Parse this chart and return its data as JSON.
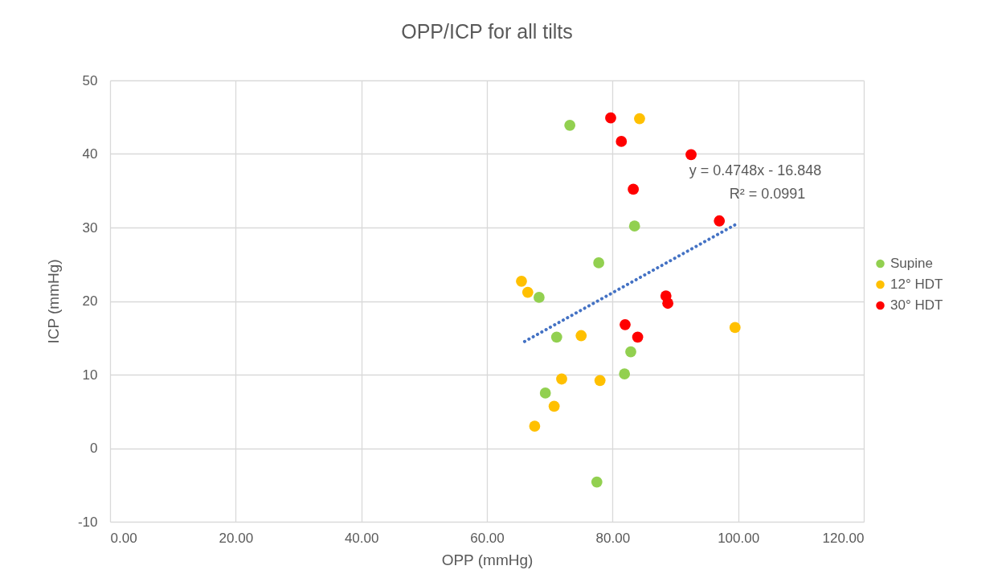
{
  "chart_data": {
    "type": "scatter",
    "title": "OPP/ICP for all tilts",
    "xlabel": "OPP (mmHg)",
    "ylabel": "ICP (mmHg)",
    "xlim": [
      0,
      120
    ],
    "xticks": [
      {
        "value": 0,
        "label": "0.00"
      },
      {
        "value": 20,
        "label": "20.00"
      },
      {
        "value": 40,
        "label": "40.00"
      },
      {
        "value": 60,
        "label": "60.00"
      },
      {
        "value": 80,
        "label": "80.00"
      },
      {
        "value": 100,
        "label": "100.00"
      },
      {
        "value": 120,
        "label": "120.00"
      }
    ],
    "ylim": [
      -10,
      50
    ],
    "yticks": [
      -10,
      0,
      10,
      20,
      30,
      40,
      50
    ],
    "grid": true,
    "legend": "right",
    "marker": "circle",
    "series": [
      {
        "name": "Supine",
        "color": "#92d050",
        "x": [
          73.2,
          83.5,
          77.8,
          68.3,
          71.1,
          82.9,
          81.9,
          69.3,
          77.5
        ],
        "values": [
          43.9,
          30.2,
          25.2,
          20.5,
          15.1,
          13.1,
          10.1,
          7.5,
          -4.6
        ]
      },
      {
        "name": "12° HDT",
        "color": "#ffc000",
        "x": [
          84.3,
          65.5,
          66.5,
          75.0,
          99.5,
          71.9,
          78.0,
          70.7,
          67.6
        ],
        "values": [
          44.8,
          22.7,
          21.2,
          15.3,
          16.4,
          9.4,
          9.2,
          5.7,
          3.0
        ]
      },
      {
        "name": "30° HDT",
        "color": "#ff0000",
        "x": [
          79.7,
          81.4,
          92.5,
          83.3,
          97.0,
          88.5,
          88.8,
          82.0,
          84.0
        ],
        "values": [
          44.9,
          41.7,
          39.9,
          35.2,
          30.9,
          20.7,
          19.7,
          16.8,
          15.1
        ]
      },
      {
        "type": "line",
        "color": "#4472c4",
        "line_style": "dotted",
        "marker": "none",
        "x": [
          66,
          100
        ],
        "values": [
          14.5,
          30.6
        ]
      }
    ],
    "annotations": [
      "y = 0.4748x - 16.848",
      "R² = 0.0991"
    ]
  }
}
